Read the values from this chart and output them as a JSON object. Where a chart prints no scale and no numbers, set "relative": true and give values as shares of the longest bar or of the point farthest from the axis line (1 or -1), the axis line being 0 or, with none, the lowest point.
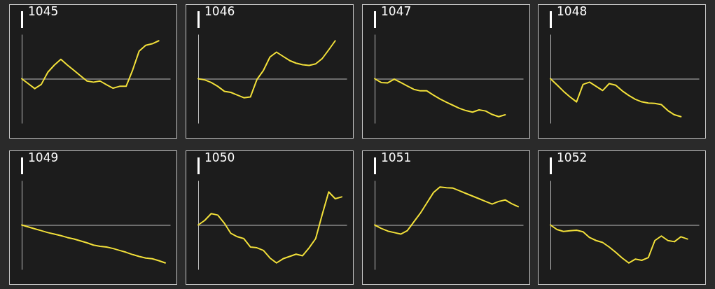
{
  "chart_data": [
    {
      "type": "line",
      "title": "1045",
      "relative": true,
      "categories": [
        null,
        null,
        null,
        null,
        null,
        null,
        null,
        null,
        null,
        null,
        null,
        null,
        null,
        null,
        null,
        null,
        null,
        null,
        null,
        null,
        null,
        null,
        null
      ],
      "series": [
        {
          "color": "#f2e03a",
          "values": [
            0,
            -0.13,
            -0.26,
            -0.15,
            0.17,
            0.36,
            0.51,
            0.36,
            0.22,
            0.08,
            -0.06,
            -0.09,
            -0.06,
            -0.16,
            -0.25,
            -0.2,
            -0.2,
            0.23,
            0.73,
            0.88,
            0.92,
            1,
            null
          ]
        }
      ]
    },
    {
      "type": "line",
      "title": "1046",
      "relative": true,
      "categories": [
        null,
        null,
        null,
        null,
        null,
        null,
        null,
        null,
        null,
        null,
        null,
        null,
        null,
        null,
        null,
        null,
        null,
        null,
        null,
        null,
        null,
        null,
        null
      ],
      "series": [
        {
          "color": "#f2e03a",
          "values": [
            0,
            -0.03,
            -0.1,
            -0.2,
            -0.33,
            -0.36,
            -0.43,
            -0.5,
            -0.48,
            -0.02,
            0.22,
            0.57,
            0.7,
            0.59,
            0.48,
            0.41,
            0.37,
            0.35,
            0.39,
            0.53,
            0.76,
            1,
            null
          ]
        }
      ]
    },
    {
      "type": "line",
      "title": "1047",
      "relative": true,
      "categories": [
        null,
        null,
        null,
        null,
        null,
        null,
        null,
        null,
        null,
        null,
        null,
        null,
        null,
        null,
        null,
        null,
        null,
        null,
        null,
        null,
        null,
        null,
        null
      ],
      "series": [
        {
          "color": "#f2e03a",
          "values": [
            0,
            -0.1,
            -0.11,
            -0.01,
            -0.1,
            -0.19,
            -0.28,
            -0.32,
            -0.32,
            -0.43,
            -0.53,
            -0.62,
            -0.7,
            -0.78,
            -0.84,
            -0.88,
            -0.82,
            -0.85,
            -0.94,
            -1,
            -0.95,
            null,
            null
          ]
        }
      ]
    },
    {
      "type": "line",
      "title": "1048",
      "relative": true,
      "categories": [
        null,
        null,
        null,
        null,
        null,
        null,
        null,
        null,
        null,
        null,
        null,
        null,
        null,
        null,
        null,
        null,
        null,
        null,
        null,
        null,
        null,
        null,
        null
      ],
      "series": [
        {
          "color": "#f2e03a",
          "values": [
            0,
            -0.16,
            -0.33,
            -0.48,
            -0.61,
            -0.15,
            -0.09,
            -0.2,
            -0.31,
            -0.13,
            -0.17,
            -0.32,
            -0.44,
            -0.54,
            -0.61,
            -0.64,
            -0.65,
            -0.68,
            -0.84,
            -0.95,
            -1,
            null,
            null
          ]
        }
      ]
    },
    {
      "type": "line",
      "title": "1049",
      "relative": true,
      "categories": [
        null,
        null,
        null,
        null,
        null,
        null,
        null,
        null,
        null,
        null,
        null,
        null,
        null,
        null,
        null,
        null,
        null,
        null,
        null,
        null,
        null,
        null,
        null
      ],
      "series": [
        {
          "color": "#f2e03a",
          "values": [
            0,
            -0.05,
            -0.1,
            -0.15,
            -0.2,
            -0.24,
            -0.28,
            -0.33,
            -0.37,
            -0.42,
            -0.47,
            -0.53,
            -0.56,
            -0.58,
            -0.62,
            -0.67,
            -0.72,
            -0.78,
            -0.83,
            -0.87,
            -0.89,
            -0.94,
            -1
          ]
        }
      ]
    },
    {
      "type": "line",
      "title": "1050",
      "relative": true,
      "categories": [
        null,
        null,
        null,
        null,
        null,
        null,
        null,
        null,
        null,
        null,
        null,
        null,
        null,
        null,
        null,
        null,
        null,
        null,
        null,
        null,
        null,
        null,
        null
      ],
      "series": [
        {
          "color": "#f2e03a",
          "values": [
            0,
            0.12,
            0.3,
            0.26,
            0.05,
            -0.22,
            -0.31,
            -0.36,
            -0.58,
            -0.6,
            -0.67,
            -0.87,
            -1,
            -0.89,
            -0.83,
            -0.77,
            -0.81,
            -0.6,
            -0.36,
            0.27,
            0.87,
            0.69,
            0.74
          ]
        }
      ]
    },
    {
      "type": "line",
      "title": "1051",
      "relative": true,
      "categories": [
        null,
        null,
        null,
        null,
        null,
        null,
        null,
        null,
        null,
        null,
        null,
        null,
        null,
        null,
        null,
        null,
        null,
        null,
        null,
        null,
        null,
        null,
        null
      ],
      "series": [
        {
          "color": "#f2e03a",
          "values": [
            0,
            -0.09,
            -0.16,
            -0.2,
            -0.24,
            -0.15,
            0.08,
            0.31,
            0.58,
            0.85,
            1,
            0.98,
            0.97,
            0.9,
            0.83,
            0.76,
            0.69,
            0.62,
            0.55,
            0.62,
            0.66,
            0.56,
            0.48
          ]
        }
      ]
    },
    {
      "type": "line",
      "title": "1052",
      "relative": true,
      "categories": [
        null,
        null,
        null,
        null,
        null,
        null,
        null,
        null,
        null,
        null,
        null,
        null,
        null,
        null,
        null,
        null,
        null,
        null,
        null,
        null,
        null,
        null,
        null
      ],
      "series": [
        {
          "color": "#f2e03a",
          "values": [
            0,
            -0.12,
            -0.17,
            -0.15,
            -0.14,
            -0.18,
            -0.33,
            -0.41,
            -0.46,
            -0.58,
            -0.72,
            -0.87,
            -1,
            -0.9,
            -0.93,
            -0.86,
            -0.41,
            -0.29,
            -0.41,
            -0.44,
            -0.31,
            -0.37,
            null
          ]
        }
      ]
    }
  ]
}
